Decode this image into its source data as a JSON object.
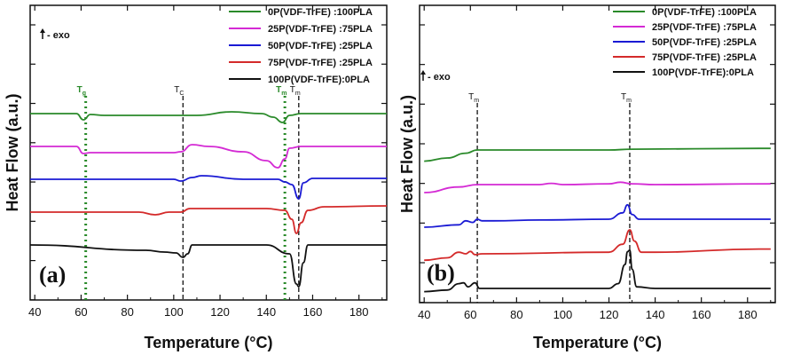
{
  "chart_data": [
    {
      "type": "line",
      "panel_label": "(a)",
      "xlabel": "Temperature (°C)",
      "ylabel": "Heat Flow (a.u.)",
      "xlim": [
        38,
        192
      ],
      "x_ticks": [
        "40",
        "60",
        "80",
        "100",
        "120",
        "140",
        "160",
        "180"
      ],
      "exo_label": "- exo",
      "annotations": [
        {
          "text": "T",
          "sub": "g",
          "x": 62,
          "color": "#2a8a2a"
        },
        {
          "text": "T",
          "sub": "C",
          "x": 104,
          "color": "#111111"
        },
        {
          "text": "T",
          "sub": "m",
          "x": 148,
          "color": "#2a8a2a"
        },
        {
          "text": "T",
          "sub": "m",
          "x": 154,
          "color": "#111111"
        }
      ],
      "series": [
        {
          "name": "0P(VDF-TrFE)    :100PLA",
          "color": "#2a8a2a",
          "offset": 4,
          "points": [
            [
              38,
              0
            ],
            [
              58,
              0
            ],
            [
              61,
              -0.35
            ],
            [
              64,
              -0.05
            ],
            [
              70,
              -0.1
            ],
            [
              100,
              -0.1
            ],
            [
              110,
              -0.1
            ],
            [
              125,
              0.1
            ],
            [
              138,
              0
            ],
            [
              143,
              -0.2
            ],
            [
              147,
              -0.5
            ],
            [
              150,
              -0.1
            ],
            [
              155,
              0
            ],
            [
              192,
              0
            ]
          ]
        },
        {
          "name": "25P(VDF-TrFE) :75PLA",
          "color": "#d42ad4",
          "offset": 3,
          "points": [
            [
              38,
              0
            ],
            [
              58,
              0
            ],
            [
              61,
              -0.4
            ],
            [
              64,
              -0.35
            ],
            [
              100,
              -0.35
            ],
            [
              103,
              -0.3
            ],
            [
              108,
              0.1
            ],
            [
              115,
              0
            ],
            [
              130,
              -0.3
            ],
            [
              140,
              -0.8
            ],
            [
              145,
              -1.2
            ],
            [
              148,
              -0.7
            ],
            [
              150,
              -0.1
            ],
            [
              155,
              0
            ],
            [
              192,
              0
            ]
          ]
        },
        {
          "name": "50P(VDF-TrFE) :25PLA",
          "color": "#1a1ad4",
          "offset": 2,
          "points": [
            [
              38,
              0
            ],
            [
              100,
              0
            ],
            [
              103,
              -0.1
            ],
            [
              108,
              0.1
            ],
            [
              112,
              0.2
            ],
            [
              130,
              0
            ],
            [
              145,
              0
            ],
            [
              148,
              -0.15
            ],
            [
              151,
              -0.3
            ],
            [
              154,
              -1.1
            ],
            [
              156,
              -0.2
            ],
            [
              160,
              0.05
            ],
            [
              192,
              0.05
            ]
          ]
        },
        {
          "name": "75P(VDF-TrFE) :25PLA",
          "color": "#d42a2a",
          "offset": 1,
          "points": [
            [
              38,
              0
            ],
            [
              85,
              0
            ],
            [
              92,
              -0.15
            ],
            [
              98,
              0
            ],
            [
              103,
              0
            ],
            [
              107,
              0.2
            ],
            [
              140,
              0.2
            ],
            [
              148,
              0.1
            ],
            [
              151,
              -0.4
            ],
            [
              153,
              -1.2
            ],
            [
              155,
              -0.6
            ],
            [
              158,
              0.1
            ],
            [
              165,
              0.3
            ],
            [
              192,
              0.35
            ]
          ]
        },
        {
          "name": "100P(VDF-TrFE):0PLA",
          "color": "#111111",
          "offset": 0,
          "points": [
            [
              38,
              0
            ],
            [
              88,
              -0.3
            ],
            [
              96,
              -0.4
            ],
            [
              101,
              -0.45
            ],
            [
              104,
              -0.7
            ],
            [
              106,
              -0.5
            ],
            [
              108,
              0
            ],
            [
              140,
              0
            ],
            [
              150,
              -0.5
            ],
            [
              153,
              -2.2
            ],
            [
              154,
              -2.35
            ],
            [
              156,
              -1.0
            ],
            [
              158,
              0
            ],
            [
              192,
              0
            ]
          ]
        }
      ]
    },
    {
      "type": "line",
      "panel_label": "(b)",
      "xlabel": "Temperature (°C)",
      "ylabel": "Heat Flow (a.u.)",
      "xlim": [
        38,
        192
      ],
      "x_ticks": [
        "40",
        "60",
        "80",
        "100",
        "120",
        "140",
        "160",
        "180"
      ],
      "exo_label": "- exo",
      "annotations": [
        {
          "text": "T",
          "sub": "m",
          "x": 63,
          "color": "#111111"
        },
        {
          "text": "T",
          "sub": "m",
          "x": 129,
          "color": "#111111"
        }
      ],
      "series": [
        {
          "name": "0P(VDF-TrFE)    :100PLA",
          "color": "#2a8a2a",
          "offset": 4,
          "points": [
            [
              40,
              -0.7
            ],
            [
              50,
              -0.5
            ],
            [
              58,
              -0.2
            ],
            [
              63,
              0
            ],
            [
              70,
              0
            ],
            [
              120,
              0
            ],
            [
              130,
              0.05
            ],
            [
              185,
              0.1
            ],
            [
              190,
              0.1
            ]
          ]
        },
        {
          "name": "25P(VDF-TrFE) :75PLA",
          "color": "#d42ad4",
          "offset": 3,
          "points": [
            [
              40,
              -0.5
            ],
            [
              55,
              -0.15
            ],
            [
              63,
              0
            ],
            [
              90,
              0
            ],
            [
              95,
              0.08
            ],
            [
              100,
              0
            ],
            [
              120,
              0.05
            ],
            [
              125,
              0.15
            ],
            [
              130,
              0.05
            ],
            [
              140,
              0
            ],
            [
              190,
              0.05
            ]
          ]
        },
        {
          "name": "50P(VDF-TrFE) :25PLA",
          "color": "#1a1ad4",
          "offset": 2,
          "points": [
            [
              40,
              -0.5
            ],
            [
              55,
              -0.35
            ],
            [
              58,
              -0.1
            ],
            [
              61,
              -0.2
            ],
            [
              63,
              0
            ],
            [
              65,
              -0.1
            ],
            [
              70,
              -0.1
            ],
            [
              90,
              -0.05
            ],
            [
              120,
              0
            ],
            [
              126,
              0.4
            ],
            [
              128,
              0.9
            ],
            [
              130,
              0.3
            ],
            [
              133,
              0
            ],
            [
              190,
              0
            ]
          ]
        },
        {
          "name": "75P(VDF-TrFE) :25PLA",
          "color": "#d42a2a",
          "offset": 1,
          "points": [
            [
              40,
              -0.4
            ],
            [
              50,
              -0.25
            ],
            [
              55,
              0.1
            ],
            [
              58,
              0
            ],
            [
              60,
              0.15
            ],
            [
              62,
              -0.05
            ],
            [
              65,
              0
            ],
            [
              120,
              0.1
            ],
            [
              126,
              0.6
            ],
            [
              129,
              1.5
            ],
            [
              131,
              0.8
            ],
            [
              134,
              0.1
            ],
            [
              140,
              0.1
            ],
            [
              185,
              0.3
            ],
            [
              190,
              0.3
            ]
          ]
        },
        {
          "name": "100P(VDF-TrFE):0PLA",
          "color": "#111111",
          "offset": 0,
          "points": [
            [
              40,
              -0.2
            ],
            [
              50,
              -0.1
            ],
            [
              55,
              0.3
            ],
            [
              57,
              0.35
            ],
            [
              59,
              0.1
            ],
            [
              62,
              0.35
            ],
            [
              64,
              0
            ],
            [
              120,
              0
            ],
            [
              124,
              0.3
            ],
            [
              127,
              1.5
            ],
            [
              128,
              2.3
            ],
            [
              129,
              2.4
            ],
            [
              130,
              1.2
            ],
            [
              132,
              0.1
            ],
            [
              140,
              0
            ],
            [
              190,
              0
            ]
          ]
        }
      ]
    }
  ]
}
